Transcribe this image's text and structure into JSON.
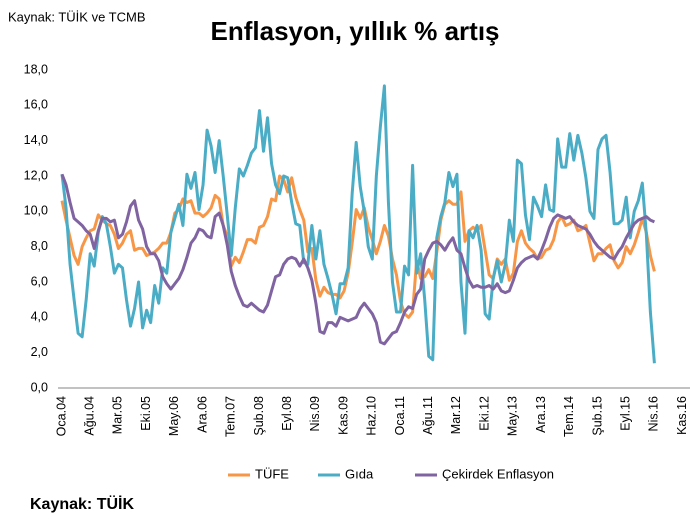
{
  "chart_data": {
    "type": "line",
    "source_top": "Kaynak: TÜİK ve TCMB",
    "title": "Enflasyon, yıllık % artış",
    "source_bottom": "Kaynak: TÜİK",
    "categories": [
      "Oca.04",
      null,
      null,
      null,
      null,
      null,
      null,
      "Ağu.04",
      null,
      null,
      null,
      null,
      null,
      null,
      "Mar.05",
      null,
      null,
      null,
      null,
      null,
      null,
      "Eki.05",
      null,
      null,
      null,
      null,
      null,
      null,
      "May.06",
      null,
      null,
      null,
      null,
      null,
      null,
      "Ara.06",
      null,
      null,
      null,
      null,
      null,
      null,
      "Tem.07",
      null,
      null,
      null,
      null,
      null,
      null,
      "Şub.08",
      null,
      null,
      null,
      null,
      null,
      null,
      "Eyl.08",
      null,
      null,
      null,
      null,
      null,
      null,
      "Nis.09",
      null,
      null,
      null,
      null,
      null,
      null,
      "Kas.09",
      null,
      null,
      null,
      null,
      null,
      null,
      "Haz.10",
      null,
      null,
      null,
      null,
      null,
      null,
      "Oca.11",
      null,
      null,
      null,
      null,
      null,
      null,
      "Ağu.11",
      null,
      null,
      null,
      null,
      null,
      null,
      "Mar.12",
      null,
      null,
      null,
      null,
      null,
      null,
      "Eki.12",
      null,
      null,
      null,
      null,
      null,
      null,
      "May.13",
      null,
      null,
      null,
      null,
      null,
      null,
      "Ara.13",
      null,
      null,
      null,
      null,
      null,
      null,
      "Tem.14",
      null,
      null,
      null,
      null,
      null,
      null,
      "Şub.15",
      null,
      null,
      null,
      null,
      null,
      null,
      "Eyl.15",
      null,
      null,
      null,
      null,
      null,
      null,
      "Nis.16",
      null,
      null,
      null,
      null,
      null,
      null,
      "Kas.16"
    ],
    "series": [
      {
        "name": "TÜFE",
        "color": "#f79646",
        "values": [
          10.6,
          9.5,
          8.5,
          7.5,
          7.0,
          8.0,
          8.5,
          8.9,
          9.0,
          9.8,
          9.5,
          9.3,
          9.2,
          8.7,
          7.9,
          8.2,
          8.7,
          8.9,
          7.8,
          7.9,
          7.9,
          7.5,
          7.6,
          7.7,
          7.9,
          8.2,
          8.2,
          8.8,
          9.9,
          10.1,
          10.7,
          10.5,
          10.6,
          9.9,
          9.9,
          9.7,
          9.9,
          10.2,
          10.9,
          10.7,
          9.2,
          8.6,
          6.9,
          7.4,
          7.1,
          7.7,
          8.4,
          8.4,
          8.2,
          9.1,
          9.2,
          9.7,
          10.7,
          10.6,
          12.0,
          11.8,
          11.1,
          11.9,
          10.8,
          10.1,
          9.5,
          7.7,
          7.9,
          6.1,
          5.2,
          5.7,
          5.4,
          5.3,
          5.3,
          5.1,
          5.5,
          6.5,
          8.2,
          10.1,
          9.6,
          10.2,
          9.1,
          8.4,
          7.6,
          8.3,
          9.2,
          8.6,
          7.3,
          6.4,
          4.9,
          4.2,
          4.0,
          4.3,
          7.2,
          6.2,
          6.3,
          6.7,
          6.2,
          7.7,
          9.5,
          10.4,
          10.6,
          10.4,
          10.4,
          11.1,
          8.3,
          8.9,
          9.1,
          8.9,
          9.2,
          7.8,
          6.4,
          6.2,
          7.3,
          7.0,
          7.3,
          6.1,
          6.5,
          8.3,
          8.9,
          8.2,
          7.9,
          7.7,
          7.3,
          7.4,
          7.8,
          7.9,
          8.4,
          9.4,
          9.7,
          9.2,
          9.3,
          9.5,
          8.9,
          9.0,
          9.2,
          8.2,
          7.2,
          7.6,
          7.6,
          7.9,
          8.1,
          7.2,
          6.8,
          7.1,
          8.0,
          7.6,
          8.1,
          8.8,
          9.6,
          8.8,
          7.5,
          6.6,
          null,
          null,
          null,
          null,
          null,
          null,
          null
        ]
      },
      {
        "name": "Gıda",
        "color": "#4bacc6",
        "values": [
          12.1,
          10.2,
          7.0,
          5.0,
          3.1,
          2.9,
          5.0,
          7.6,
          6.9,
          8.8,
          9.7,
          9.3,
          8.0,
          6.5,
          7.0,
          6.8,
          5.0,
          3.5,
          4.5,
          6.0,
          3.4,
          4.4,
          3.7,
          5.8,
          4.8,
          6.8,
          6.5,
          8.8,
          9.6,
          10.4,
          9.2,
          12.1,
          11.3,
          12.2,
          10.1,
          11.5,
          14.6,
          13.7,
          12.2,
          14.0,
          12.0,
          9.8,
          7.5,
          10.2,
          12.4,
          12.0,
          12.6,
          13.3,
          13.6,
          15.7,
          13.4,
          15.3,
          12.7,
          11.5,
          11.0,
          12.0,
          11.9,
          10.5,
          9.3,
          9.2,
          7.1,
          7.0,
          9.2,
          7.3,
          8.9,
          7.0,
          6.2,
          5.3,
          4.2,
          5.9,
          5.9,
          6.8,
          11.0,
          13.9,
          11.4,
          10.0,
          8.0,
          7.3,
          12.0,
          14.8,
          17.1,
          10.5,
          6.0,
          4.3,
          4.3,
          6.9,
          6.4,
          12.6,
          6.5,
          7.6,
          5.0,
          1.8,
          1.6,
          8.5,
          9.7,
          10.5,
          12.2,
          11.4,
          12.1,
          6.0,
          3.1,
          8.9,
          8.5,
          9.2,
          7.8,
          4.2,
          3.9,
          6.2,
          7.2,
          6.0,
          7.0,
          9.5,
          8.3,
          12.9,
          12.7,
          9.8,
          8.4,
          10.8,
          10.3,
          9.7,
          11.5,
          10.1,
          10.0,
          14.1,
          12.5,
          12.5,
          14.4,
          12.9,
          14.3,
          13.3,
          11.9,
          10.0,
          9.6,
          13.5,
          14.1,
          14.3,
          12.2,
          9.3,
          9.3,
          9.5,
          10.8,
          8.5,
          10.0,
          10.6,
          11.6,
          8.7,
          4.3,
          1.4,
          null,
          null,
          null,
          null,
          null,
          null,
          null
        ]
      },
      {
        "name": "Çekirdek Enflasyon",
        "color": "#8064a2",
        "values": [
          12.1,
          11.5,
          10.5,
          9.6,
          9.4,
          9.2,
          8.9,
          8.7,
          7.9,
          8.9,
          9.6,
          9.6,
          9.4,
          9.5,
          8.5,
          8.7,
          9.4,
          10.3,
          10.6,
          9.5,
          9.0,
          8.0,
          7.6,
          7.6,
          7.2,
          6.3,
          5.9,
          5.6,
          5.9,
          6.2,
          6.7,
          7.4,
          8.2,
          8.5,
          9.0,
          8.9,
          8.6,
          8.5,
          9.7,
          9.9,
          9.2,
          8.1,
          6.6,
          5.8,
          5.2,
          4.7,
          4.6,
          4.8,
          4.6,
          4.4,
          4.3,
          4.7,
          5.5,
          6.3,
          6.4,
          7.0,
          7.3,
          7.4,
          7.3,
          6.9,
          7.3,
          6.8,
          6.1,
          4.8,
          3.2,
          3.1,
          3.7,
          3.7,
          3.5,
          4.0,
          3.9,
          3.8,
          3.9,
          4.0,
          4.5,
          4.8,
          4.5,
          4.2,
          3.7,
          2.6,
          2.5,
          2.8,
          3.1,
          3.2,
          3.7,
          4.3,
          4.6,
          4.5,
          5.3,
          5.6,
          7.3,
          7.8,
          8.2,
          8.3,
          8.1,
          7.8,
          8.2,
          8.5,
          7.8,
          7.6,
          6.8,
          6.1,
          5.7,
          5.8,
          5.7,
          5.7,
          5.8,
          5.6,
          5.9,
          5.5,
          5.4,
          5.5,
          6.1,
          6.8,
          7.1,
          7.3,
          7.4,
          7.5,
          7.3,
          7.8,
          8.4,
          9.1,
          9.6,
          9.8,
          9.7,
          9.6,
          9.7,
          9.4,
          9.2,
          9.1,
          9.0,
          8.7,
          8.3,
          8.0,
          7.8,
          7.6,
          7.4,
          7.3,
          7.7,
          8.0,
          8.5,
          8.9,
          9.3,
          9.5,
          9.6,
          9.7,
          9.5,
          9.4,
          null,
          null,
          null,
          null,
          null,
          null,
          null
        ]
      }
    ],
    "ylim": [
      0,
      18
    ],
    "yticks": [
      {
        "value": 0,
        "label": "0,0"
      },
      {
        "value": 2,
        "label": "2,0"
      },
      {
        "value": 4,
        "label": "4,0"
      },
      {
        "value": 6,
        "label": "6,0"
      },
      {
        "value": 8,
        "label": "8,0"
      },
      {
        "value": 10,
        "label": "10,0"
      },
      {
        "value": 12,
        "label": "12,0"
      },
      {
        "value": 14,
        "label": "14,0"
      },
      {
        "value": 16,
        "label": "16,0"
      },
      {
        "value": 18,
        "label": "18,0"
      }
    ],
    "grid": false
  }
}
